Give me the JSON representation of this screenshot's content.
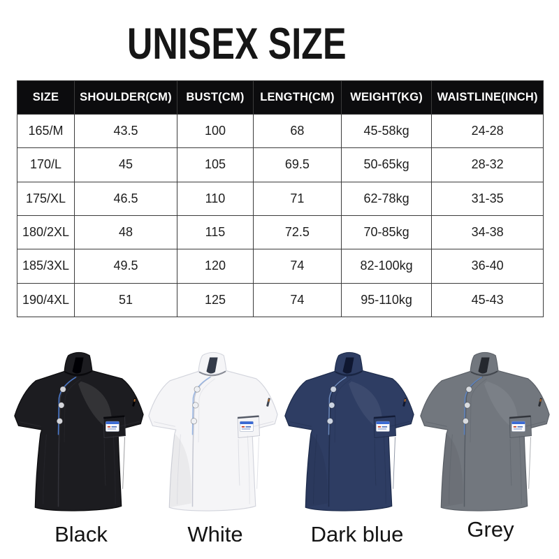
{
  "title": "UNISEX SIZE",
  "size_table": {
    "columns": [
      "SIZE",
      "SHOULDER(CM)",
      "BUST(CM)",
      "LENGTH(CM)",
      "WEIGHT(KG)",
      "WAISTLINE(INCH)"
    ],
    "rows": [
      [
        "165/M",
        "43.5",
        "100",
        "68",
        "45-58kg",
        "24-28"
      ],
      [
        "170/L",
        "45",
        "105",
        "69.5",
        "50-65kg",
        "28-32"
      ],
      [
        "175/XL",
        "46.5",
        "110",
        "71",
        "62-78kg",
        "31-35"
      ],
      [
        "180/2XL",
        "48",
        "115",
        "72.5",
        "70-85kg",
        "34-38"
      ],
      [
        "185/3XL",
        "49.5",
        "120",
        "74",
        "82-100kg",
        "36-40"
      ],
      [
        "190/4XL",
        "51",
        "125",
        "74",
        "95-110kg",
        "45-43"
      ]
    ],
    "header_bg": "#0c0c0e",
    "header_text_color": "#ffffff",
    "border_color": "#3b3b3b"
  },
  "products": {
    "jackets": [
      {
        "label": "Black",
        "colors": {
          "base": "#1c1c20",
          "seam": "#33333a",
          "dark": "#000004",
          "outline": "#0a0a0c",
          "button": "#d4d5da",
          "piping": "#4d7fd8"
        }
      },
      {
        "label": "White",
        "colors": {
          "base": "#f5f5f7",
          "seam": "#c6c8d2",
          "dark": "#343b49",
          "outline": "#d2d4dc",
          "button": "#eef0f4",
          "piping": "#93b2e2"
        }
      },
      {
        "label": "Dark blue",
        "colors": {
          "base": "#2e3d63",
          "seam": "#202d4c",
          "dark": "#0f1730",
          "outline": "#1c2a4a",
          "button": "#ccd4e2",
          "piping": "#6f8cc0"
        }
      },
      {
        "label": "Grey",
        "colors": {
          "base": "#72777e",
          "seam": "#565c64",
          "dark": "#25282e",
          "outline": "#5a5f66",
          "button": "#d9dce0",
          "piping": "#5c84c4"
        }
      }
    ],
    "pocket_card": {
      "bg": "#ffffff",
      "stripe": "#3a6ad4",
      "mark_red": "#c2432f",
      "mark_blue": "#3f64b5"
    }
  }
}
